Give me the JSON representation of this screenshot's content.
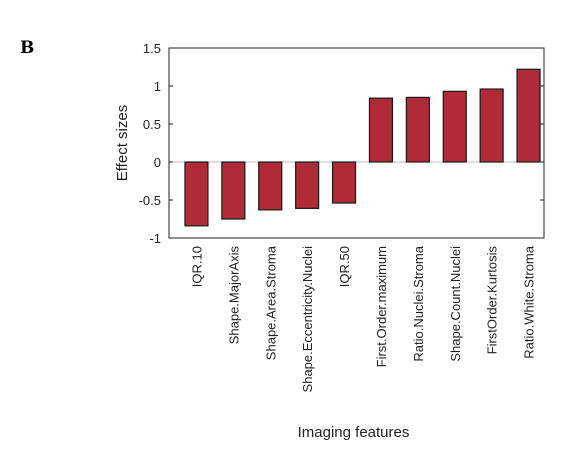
{
  "panel_label": "B",
  "colors": {
    "bar_fill": "#b02a37",
    "bar_stroke": "#1a1a1a",
    "axis": "#222222",
    "zero_line": "#bbbbbb"
  },
  "chart_data": {
    "type": "bar",
    "title": "",
    "xlabel": "Imaging features",
    "ylabel": "Effect sizes",
    "ylim": [
      -1,
      1.5
    ],
    "yticks": [
      -1,
      -0.5,
      0,
      0.5,
      1,
      1.5
    ],
    "ytick_labels": [
      "-1",
      "-0.5",
      "0",
      "0.5",
      "1",
      "1.5"
    ],
    "grid": false,
    "categories": [
      "IQR.10",
      "Shape.MajorAxis",
      "Shape.Area.Stroma",
      "Shape.Eccentricity.Nuclei",
      "IQR.50",
      "First.Order.maximum",
      "Ratio.Nuclei.Stroma",
      "Shape.Count.Nuclei",
      "FirstOrder.Kurtosis",
      "Ratio.White.Stroma"
    ],
    "values": [
      -0.84,
      -0.75,
      -0.63,
      -0.61,
      -0.54,
      0.84,
      0.85,
      0.93,
      0.96,
      1.22
    ]
  }
}
